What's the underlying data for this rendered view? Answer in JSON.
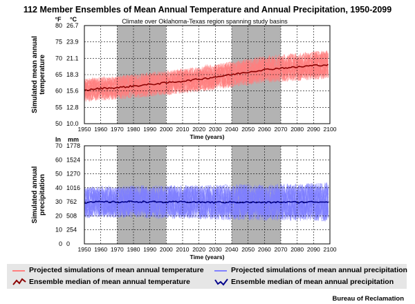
{
  "title": "112 Member Ensembles of Mean Annual Temperature and Annual Precipitation, 1950-2099",
  "subtitle": "Climate over Oklahoma-Texas region spanning study basins",
  "colors": {
    "temp_projection": "#ff7f7f",
    "temp_median": "#8b0000",
    "precip_projection": "#8080ff",
    "precip_median": "#00008b",
    "shade": "#b3b3b3",
    "legend_bg": "#e6e6e6"
  },
  "chart_data": [
    {
      "type": "line",
      "ylabel": "Simulated mean annual temperature",
      "xlabel": "Time (years)",
      "unit_left_label": "°F",
      "unit_right_label": "°C",
      "xlim": [
        1950,
        2100
      ],
      "ylim": [
        50,
        80
      ],
      "x_ticks": [
        "1950",
        "1960",
        "1970",
        "1980",
        "1990",
        "2000",
        "2010",
        "2020",
        "2030",
        "2040",
        "2050",
        "2060",
        "2070",
        "2080",
        "2090",
        "2100"
      ],
      "y_ticks_f": [
        "50",
        "55",
        "60",
        "65",
        "70",
        "75",
        "80"
      ],
      "y_ticks_c": [
        "10.0",
        "12.8",
        "15.6",
        "18.3",
        "21.1",
        "23.9",
        "26.7"
      ],
      "grid": true,
      "shaded_periods": [
        [
          1970,
          2000
        ],
        [
          2040,
          2070
        ]
      ],
      "envelope_spread": 3.5,
      "series": [
        {
          "name": "Ensemble median of mean annual temperature",
          "x": [
            1950,
            1960,
            1970,
            1980,
            1990,
            2000,
            2010,
            2020,
            2030,
            2040,
            2050,
            2060,
            2070,
            2080,
            2090,
            2099
          ],
          "y": [
            60.2,
            60.8,
            61.0,
            61.5,
            62.0,
            62.5,
            63.0,
            63.6,
            64.3,
            65.0,
            65.8,
            66.5,
            67.0,
            67.3,
            67.8,
            68.0
          ]
        }
      ]
    },
    {
      "type": "line",
      "ylabel": "Simulated annual precipitation",
      "xlabel": "Time (years)",
      "unit_left_label": "In",
      "unit_right_label": "mm",
      "xlim": [
        1950,
        2100
      ],
      "ylim": [
        0,
        70
      ],
      "x_ticks": [
        "1950",
        "1960",
        "1970",
        "1980",
        "1990",
        "2000",
        "2010",
        "2020",
        "2030",
        "2040",
        "2050",
        "2060",
        "2070",
        "2080",
        "2090",
        "2100"
      ],
      "y_ticks_in": [
        "0",
        "10",
        "20",
        "30",
        "40",
        "50",
        "60",
        "70"
      ],
      "y_ticks_mm": [
        "0",
        "254",
        "508",
        "762",
        "1016",
        "1270",
        "1524",
        "1778"
      ],
      "grid": true,
      "shaded_periods": [
        [
          1970,
          2000
        ],
        [
          2040,
          2070
        ]
      ],
      "envelope_spread": 11,
      "series": [
        {
          "name": "Ensemble median of mean annual precipitation",
          "x": [
            1950,
            1960,
            1970,
            1980,
            1990,
            2000,
            2010,
            2020,
            2030,
            2040,
            2050,
            2060,
            2070,
            2080,
            2090,
            2099
          ],
          "y": [
            29.5,
            30.0,
            29.8,
            30.2,
            30.0,
            29.7,
            30.0,
            29.8,
            29.6,
            29.8,
            29.7,
            29.5,
            29.8,
            29.7,
            29.9,
            30.0
          ]
        }
      ]
    }
  ],
  "legend": [
    {
      "label": "Projected simulations of mean annual temperature",
      "kind": "band",
      "color": "#ff7f7f"
    },
    {
      "label": "Projected simulations of mean annual precipitation",
      "kind": "band",
      "color": "#8080ff"
    },
    {
      "label": "Ensemble median of mean annual temperature",
      "kind": "line",
      "color": "#8b0000"
    },
    {
      "label": "Ensemble median of mean annual precipitation",
      "kind": "line",
      "color": "#00008b"
    }
  ],
  "credit": "Bureau of Reclamation"
}
